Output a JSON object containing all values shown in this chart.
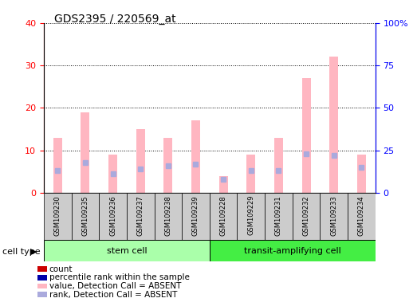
{
  "title": "GDS2395 / 220569_at",
  "samples": [
    "GSM109230",
    "GSM109235",
    "GSM109236",
    "GSM109237",
    "GSM109238",
    "GSM109239",
    "GSM109228",
    "GSM109229",
    "GSM109231",
    "GSM109232",
    "GSM109233",
    "GSM109234"
  ],
  "bar_values": [
    13,
    19,
    9,
    15,
    13,
    17,
    4,
    9,
    13,
    27,
    32,
    9
  ],
  "dot_values": [
    13,
    18,
    11,
    14,
    16,
    17,
    8,
    13,
    13,
    23,
    22,
    15
  ],
  "bar_color_absent": "#FFB6C1",
  "dot_color_absent": "#AAAADD",
  "ylim_left": [
    0,
    40
  ],
  "ylim_right": [
    0,
    100
  ],
  "yticks_left": [
    0,
    10,
    20,
    30,
    40
  ],
  "yticks_right": [
    0,
    25,
    50,
    75,
    100
  ],
  "ytick_labels_left": [
    "0",
    "10",
    "20",
    "30",
    "40"
  ],
  "ytick_labels_right": [
    "0",
    "25",
    "50",
    "75",
    "100%"
  ],
  "grid_color": "black",
  "bg_color": "#CCCCCC",
  "plot_bg": "white",
  "stem_color": "#AAFFAA",
  "transit_color": "#44EE44",
  "legend_items": [
    {
      "color": "#CC0000",
      "label": "count"
    },
    {
      "color": "#0000AA",
      "label": "percentile rank within the sample"
    },
    {
      "color": "#FFB6C1",
      "label": "value, Detection Call = ABSENT"
    },
    {
      "color": "#AAAADD",
      "label": "rank, Detection Call = ABSENT"
    }
  ]
}
